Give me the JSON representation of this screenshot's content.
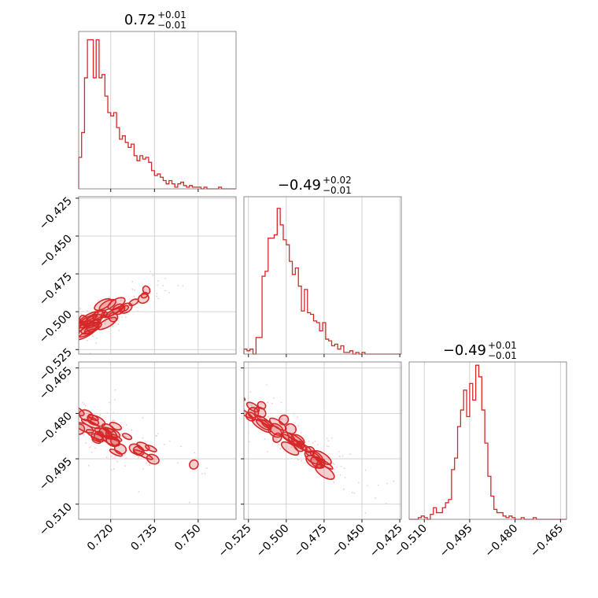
{
  "accent_color": "#d62728",
  "grid_color": "#c8c8c8",
  "frame_color": "#808080",
  "chart_data": {
    "type": "corner",
    "parameters": [
      {
        "index": 0,
        "title_value": "0.72",
        "title_plus": "+0.01",
        "title_minus": "−0.01",
        "range": [
          0.709,
          0.763
        ],
        "ticks": [
          0.72,
          0.735,
          0.75
        ],
        "tick_labels": [
          "0.720",
          "0.735",
          "0.750"
        ],
        "histogram": {
          "bin_start": 0.709,
          "bin_width": 0.001,
          "heights": [
            0.19,
            0.34,
            0.67,
            0.9,
            0.9,
            0.67,
            0.9,
            0.67,
            0.69,
            0.56,
            0.46,
            0.44,
            0.46,
            0.37,
            0.3,
            0.32,
            0.28,
            0.25,
            0.27,
            0.2,
            0.17,
            0.2,
            0.18,
            0.19,
            0.16,
            0.11,
            0.08,
            0.09,
            0.07,
            0.05,
            0.03,
            0.05,
            0.03,
            0.01,
            0.03,
            0.04,
            0.02,
            0.01,
            0.02,
            0.01,
            0.01,
            0.01,
            0.0,
            0.01,
            0.0,
            0.0,
            0.0,
            0.0,
            0.01,
            0.0,
            0.0,
            0.0,
            0.0,
            0.0
          ]
        }
      },
      {
        "index": 1,
        "title_value": "−0.49",
        "title_plus": "+0.02",
        "title_minus": "−0.01",
        "range": [
          -0.528,
          -0.424
        ],
        "ticks": [
          -0.525,
          -0.5,
          -0.475,
          -0.45,
          -0.425
        ],
        "tick_labels": [
          "−0.525",
          "−0.500",
          "−0.475",
          "−0.450",
          "−0.425"
        ],
        "histogram": {
          "bin_start": -0.528,
          "bin_width": 0.002,
          "heights": [
            0.03,
            0.02,
            0.03,
            0.0,
            0.1,
            0.1,
            0.47,
            0.5,
            0.7,
            0.7,
            0.72,
            0.88,
            0.78,
            0.69,
            0.66,
            0.56,
            0.48,
            0.52,
            0.41,
            0.26,
            0.39,
            0.25,
            0.24,
            0.2,
            0.19,
            0.14,
            0.19,
            0.09,
            0.08,
            0.05,
            0.06,
            0.03,
            0.05,
            0.01,
            0.01,
            0.02,
            0.0,
            0.01,
            0.0,
            0.01,
            0.0,
            0.0,
            0.0,
            0.0,
            0.0,
            0.0,
            0.0,
            0.0,
            0.0,
            0.0,
            0.0,
            0.0
          ]
        }
      },
      {
        "index": 2,
        "title_value": "−0.49",
        "title_plus": "+0.01",
        "title_minus": "−0.01",
        "range": [
          -0.515,
          -0.463
        ],
        "ticks": [
          -0.51,
          -0.495,
          -0.48,
          -0.465
        ],
        "tick_labels": [
          "−0.510",
          "−0.495",
          "−0.480",
          "−0.465"
        ],
        "histogram": {
          "bin_start": -0.515,
          "bin_width": 0.001,
          "heights": [
            0.0,
            0.0,
            0.0,
            0.01,
            0.02,
            0.01,
            0.0,
            0.03,
            0.07,
            0.04,
            0.04,
            0.07,
            0.1,
            0.12,
            0.3,
            0.37,
            0.56,
            0.66,
            0.78,
            0.62,
            0.82,
            0.72,
            0.93,
            0.86,
            0.66,
            0.46,
            0.26,
            0.14,
            0.06,
            0.04,
            0.04,
            0.02,
            0.01,
            0.02,
            0.01,
            0.0,
            0.0,
            0.01,
            0.0,
            0.0,
            0.0,
            0.01,
            0.0,
            0.0,
            0.0,
            0.0,
            0.0,
            0.0,
            0.0,
            0.0,
            0.0,
            0.0
          ]
        }
      }
    ],
    "contours": [
      {
        "x_param": 0,
        "y_param": 1,
        "relation": "strong positive correlation",
        "center": [
          0.716,
          -0.505
        ],
        "slope": 1.05,
        "spread_along": 0.012,
        "spread_across": 0.0035
      },
      {
        "x_param": 0,
        "y_param": 2,
        "relation": "negative correlation",
        "center": [
          0.718,
          -0.487
        ],
        "slope": -0.45,
        "spread_along": 0.012,
        "spread_across": 0.0035
      },
      {
        "x_param": 1,
        "y_param": 2,
        "relation": "negative correlation",
        "center": [
          -0.5,
          -0.487
        ],
        "slope": -0.33,
        "spread_along": 0.02,
        "spread_across": 0.0028
      }
    ],
    "grid": true,
    "legend": "none"
  }
}
